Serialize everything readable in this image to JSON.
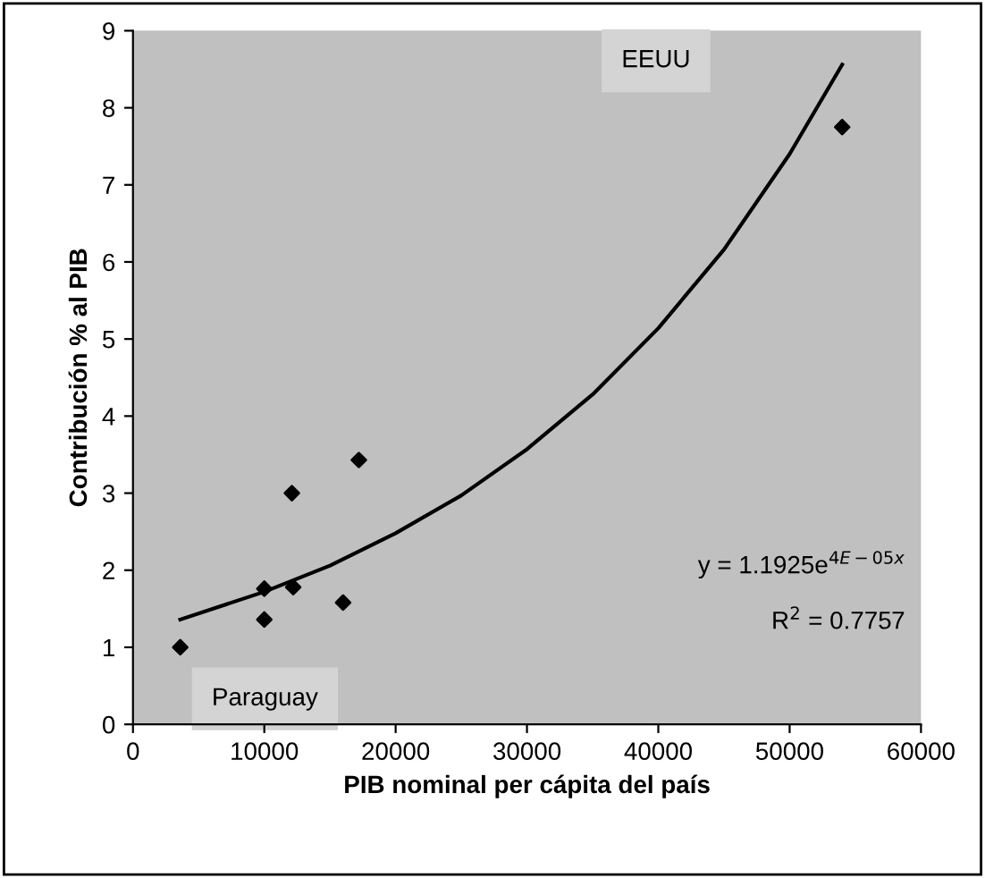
{
  "chart_data": {
    "type": "scatter",
    "xlabel": "PIB nominal per cápita del país",
    "ylabel": "Contribución % al PIB",
    "series": [
      {
        "color": "#000000",
        "marker": "diamond",
        "x": [
          3600,
          10000,
          10000,
          12100,
          12200,
          16000,
          17200,
          54000
        ],
        "values": [
          1.0,
          1.76,
          1.36,
          3.0,
          1.78,
          1.58,
          3.43,
          7.75
        ]
      },
      {
        "type": "line",
        "color": "#000000",
        "line_style": "solid",
        "x": [
          3600,
          10000,
          15000,
          20000,
          25000,
          30000,
          35000,
          40000,
          45000,
          50000,
          54000
        ],
        "values": [
          1.36,
          1.72,
          2.06,
          2.48,
          2.97,
          3.57,
          4.28,
          5.14,
          6.16,
          7.4,
          8.56
        ]
      }
    ],
    "annotations": [
      "EEUU",
      "Paraguay",
      "y = 1.1925e$^{4E−05x}$",
      "R$^{2}$ = 0.7757"
    ],
    "xlim": [
      0,
      60000
    ],
    "xticks": [
      0,
      10000,
      20000,
      30000,
      40000,
      50000,
      60000
    ],
    "ylim": [
      0,
      9
    ],
    "yticks": [
      0,
      1,
      2,
      3,
      4,
      5,
      6,
      7,
      8,
      9
    ],
    "grid": false,
    "legend": false
  }
}
